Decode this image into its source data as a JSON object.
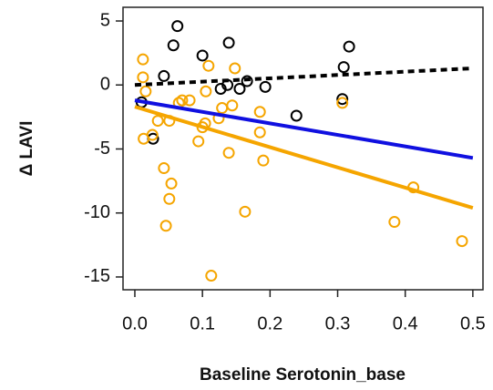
{
  "chart_data": {
    "type": "scatter",
    "x_label": "Baseline Serotonin_base",
    "y_label": "Δ LAVI",
    "xlim": [
      -0.0175,
      0.515
    ],
    "ylim": [
      -16,
      6.07
    ],
    "xticks": [
      {
        "value": 0,
        "label": "0.0"
      },
      0.1,
      0.2,
      0.3,
      0.4,
      0.5
    ],
    "yticks": [
      5,
      0,
      -5,
      -10,
      -15
    ],
    "series": [
      {
        "type": "scatter",
        "color": "#000000",
        "x": [
          0.01,
          0.027,
          0.063,
          0.057,
          0.043,
          0.1,
          0.139,
          0.127,
          0.137,
          0.155,
          0.166,
          0.193,
          0.239,
          0.317,
          0.309,
          0.307
        ],
        "values": [
          -1.35,
          -4.2,
          4.6,
          3.1,
          0.7,
          2.3,
          3.3,
          -0.3,
          0,
          -0.3,
          0.3,
          -0.15,
          -2.4,
          3.0,
          1.4,
          -1.1
        ]
      },
      {
        "type": "scatter",
        "color": "#f5a500",
        "x": [
          0.012,
          0.012,
          0.016,
          0.013,
          0.026,
          0.034,
          0.043,
          0.046,
          0.054,
          0.051,
          0.051,
          0.065,
          0.07,
          0.081,
          0.094,
          0.1,
          0.104,
          0.105,
          0.109,
          0.113,
          0.124,
          0.129,
          0.139,
          0.144,
          0.148,
          0.163,
          0.185,
          0.185,
          0.19,
          0.307,
          0.384,
          0.412,
          0.484
        ],
        "values": [
          2.0,
          0.6,
          -0.5,
          -4.2,
          -3.9,
          -2.8,
          -6.5,
          -11.0,
          -7.7,
          -8.9,
          -2.8,
          -1.4,
          -1.2,
          -1.2,
          -4.4,
          -3.3,
          -3.0,
          -0.5,
          1.5,
          -14.9,
          -2.6,
          -1.8,
          -5.3,
          -1.6,
          1.3,
          -9.9,
          -2.1,
          -3.7,
          -5.9,
          -1.4,
          -10.7,
          -8.0,
          -12.2
        ]
      },
      {
        "type": "line",
        "color": "#000000",
        "dashed": true,
        "x": [
          0,
          0.5
        ],
        "values": [
          0.0,
          1.3
        ]
      },
      {
        "type": "line",
        "color": "#1010e0",
        "dashed": false,
        "x": [
          0,
          0.5
        ],
        "values": [
          -1.2,
          -5.7
        ]
      },
      {
        "type": "line",
        "color": "#f5a500",
        "dashed": false,
        "x": [
          0,
          0.5
        ],
        "values": [
          -1.7,
          -9.6
        ]
      }
    ]
  }
}
